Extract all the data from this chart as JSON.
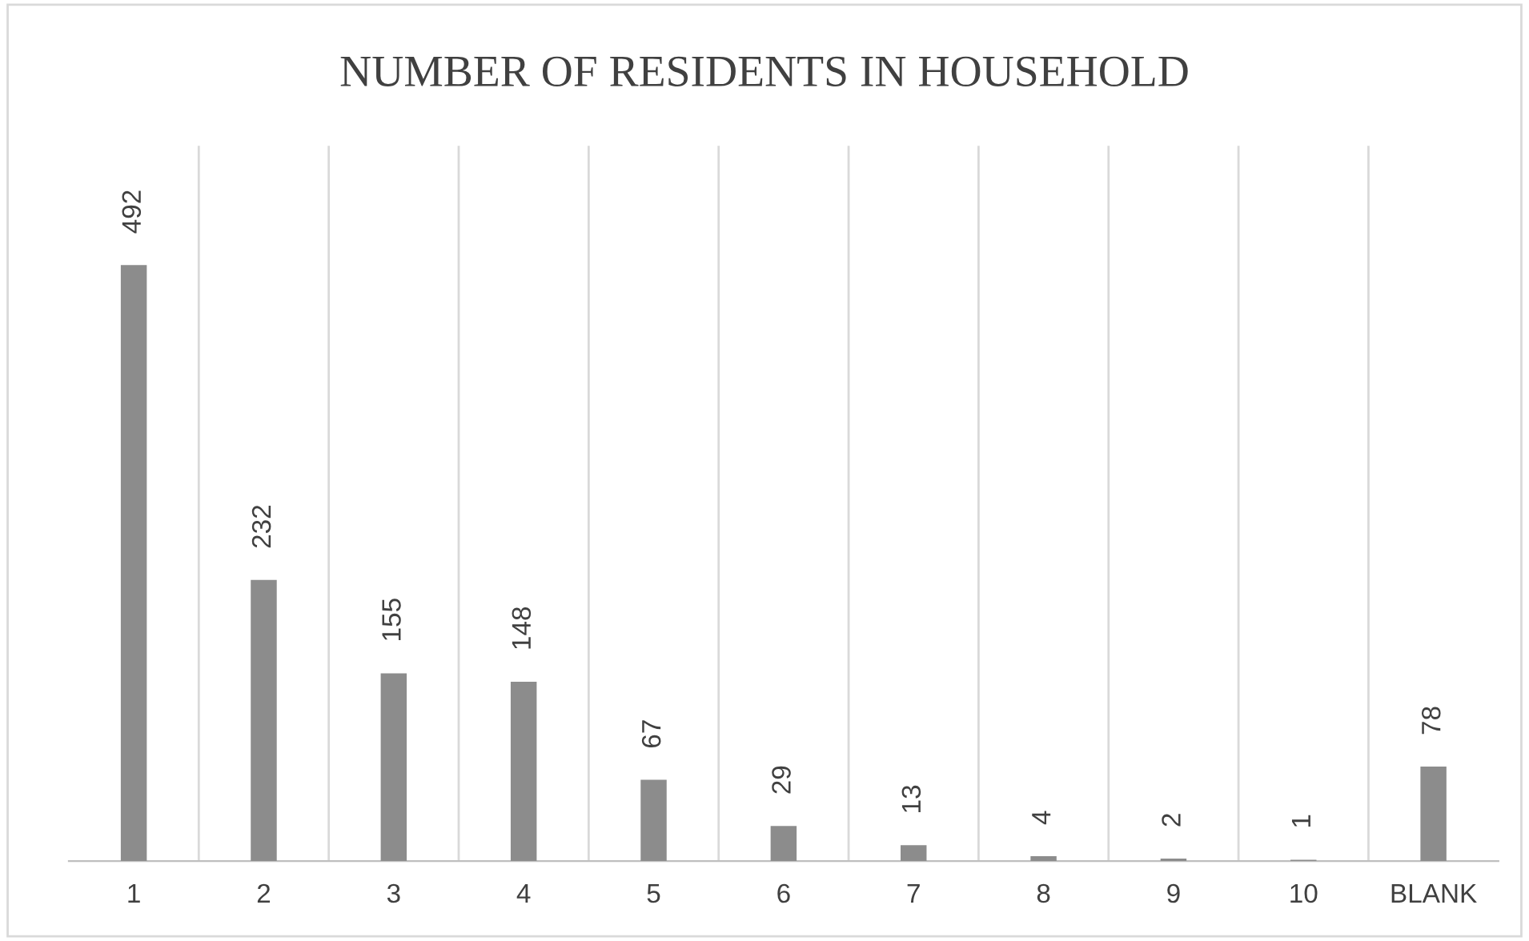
{
  "chart_data": {
    "type": "bar",
    "title": "NUMBER OF RESIDENTS IN HOUSEHOLD",
    "categories": [
      "1",
      "2",
      "3",
      "4",
      "5",
      "6",
      "7",
      "8",
      "9",
      "10",
      "BLANK"
    ],
    "values": [
      492,
      232,
      155,
      148,
      67,
      29,
      13,
      4,
      2,
      1,
      78
    ],
    "color": "#8c8c8c",
    "data_labels": true,
    "grid": "x"
  }
}
